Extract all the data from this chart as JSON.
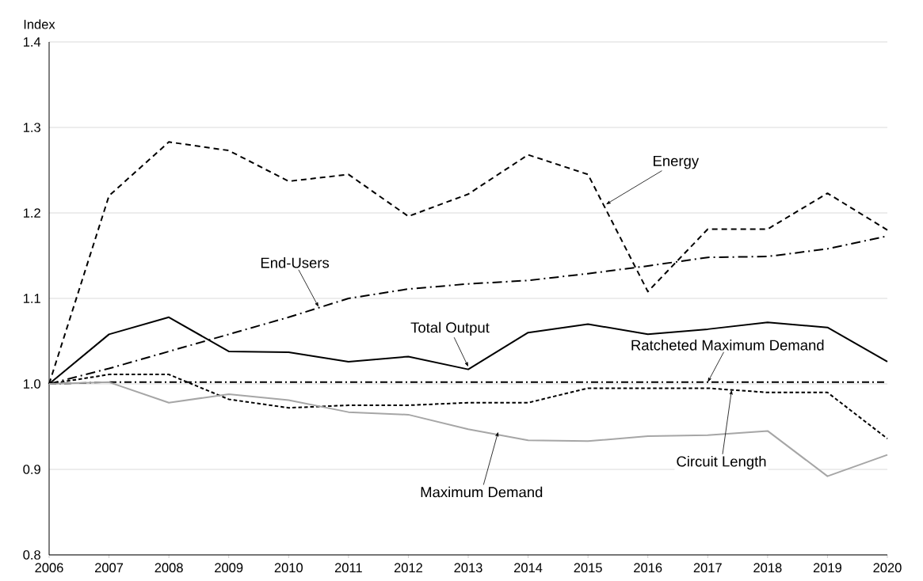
{
  "chart_data": {
    "type": "line",
    "ylabel": "Index",
    "x": [
      2006,
      2007,
      2008,
      2009,
      2010,
      2011,
      2012,
      2013,
      2014,
      2015,
      2016,
      2017,
      2018,
      2019,
      2020
    ],
    "xlim": [
      2006,
      2020
    ],
    "xticks": [
      2006,
      2007,
      2008,
      2009,
      2010,
      2011,
      2012,
      2013,
      2014,
      2015,
      2016,
      2017,
      2018,
      2019,
      2020
    ],
    "ylim": [
      0.8,
      1.4
    ],
    "yticks": [
      0.8,
      0.9,
      {
        "value": 1,
        "label": "1.0"
      },
      1.1,
      1.2,
      1.3,
      1.4
    ],
    "grid": "y",
    "legend": false,
    "marker": "none",
    "series": [
      {
        "color": "#000000",
        "line_style": "dashed",
        "values": [
          1.0,
          1.22,
          1.283,
          1.273,
          1.237,
          1.245,
          1.196,
          1.222,
          1.268,
          1.245,
          1.108,
          1.181,
          1.181,
          1.223,
          1.18
        ]
      },
      {
        "color": "#000000",
        "line_style": "dashdot",
        "values": [
          1.0,
          1.018,
          1.038,
          1.058,
          1.078,
          1.1,
          1.111,
          1.117,
          1.121,
          1.129,
          1.138,
          1.148,
          1.149,
          1.158,
          1.173
        ]
      },
      {
        "color": "#000000",
        "line_style": "solid",
        "values": [
          1.0,
          1.058,
          1.078,
          1.038,
          1.037,
          1.026,
          1.032,
          1.017,
          1.06,
          1.07,
          1.058,
          1.064,
          1.072,
          1.066,
          1.026
        ]
      },
      {
        "color": "#000000",
        "line_style": "densedashdot",
        "values": [
          1.0,
          1.002,
          1.002,
          1.002,
          1.002,
          1.002,
          1.002,
          1.002,
          1.002,
          1.002,
          1.002,
          1.002,
          1.002,
          1.002,
          1.002
        ]
      },
      {
        "color": "#000000",
        "line_style": "densedashed",
        "values": [
          1.0,
          1.011,
          1.011,
          0.982,
          0.972,
          0.975,
          0.975,
          0.978,
          0.978,
          0.995,
          0.995,
          0.995,
          0.99,
          0.99,
          0.936
        ]
      },
      {
        "color": "#a6a6a6",
        "line_style": "solid",
        "values": [
          1.0,
          1.002,
          0.978,
          0.988,
          0.981,
          0.967,
          0.964,
          0.947,
          0.934,
          0.933,
          0.939,
          0.94,
          0.945,
          0.892,
          0.917
        ]
      }
    ],
    "annotations": [
      {
        "text": "Energy",
        "x": 2015.3,
        "y": 1.21
      },
      {
        "text": "End-Users",
        "x": 2010.5,
        "y": 1.09
      },
      {
        "text": "Total Output",
        "x": 2013,
        "y": 1.02
      },
      {
        "text": "Ratcheted Maximum Demand",
        "x": 2017,
        "y": 1.002
      },
      {
        "text": "Circuit Length",
        "x": 2017.4,
        "y": 0.993
      },
      {
        "text": "Maximum Demand",
        "x": 2013.5,
        "y": 0.944
      }
    ]
  }
}
